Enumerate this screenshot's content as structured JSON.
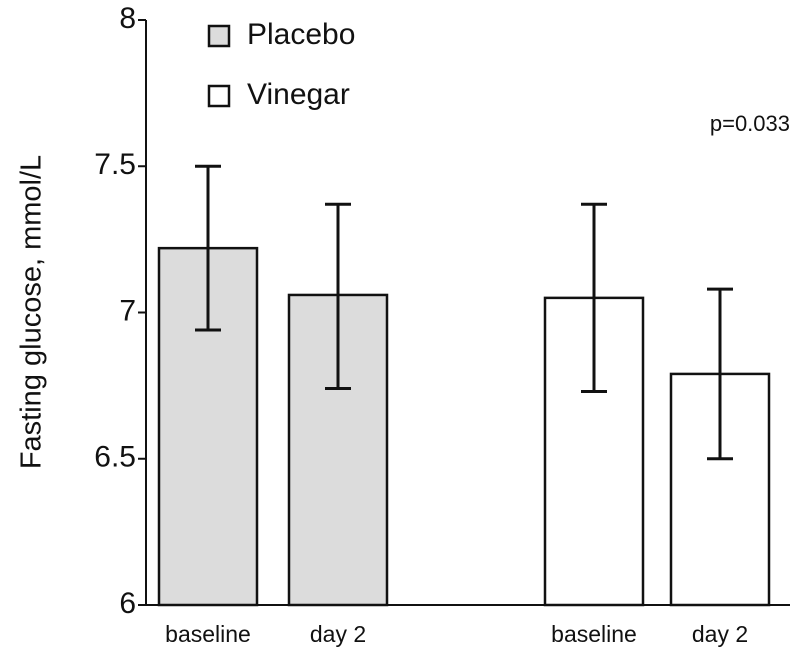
{
  "chart_data": {
    "type": "bar",
    "title": "",
    "xlabel": "",
    "ylabel": "Fasting glucose, mmol/L",
    "ylim": [
      6,
      8
    ],
    "yticks": [
      6,
      6.5,
      7,
      7.5,
      8
    ],
    "ytick_labels": [
      "6",
      "6.5",
      "7",
      "7.5",
      "8"
    ],
    "grid": false,
    "legend_position": "top-left",
    "series": [
      {
        "name": "Placebo",
        "color": "#dcdcdc",
        "categories": [
          "baseline",
          "day 2"
        ],
        "values": [
          7.22,
          7.06
        ],
        "error_low": [
          6.94,
          6.74
        ],
        "error_high": [
          7.5,
          7.37
        ]
      },
      {
        "name": "Vinegar",
        "color": "#ffffff",
        "categories": [
          "baseline",
          "day 2"
        ],
        "values": [
          7.05,
          6.79
        ],
        "error_low": [
          6.73,
          6.5
        ],
        "error_high": [
          7.37,
          7.08
        ]
      }
    ],
    "annotations": [
      {
        "text": "p=0.033",
        "position": "top-right"
      }
    ]
  }
}
